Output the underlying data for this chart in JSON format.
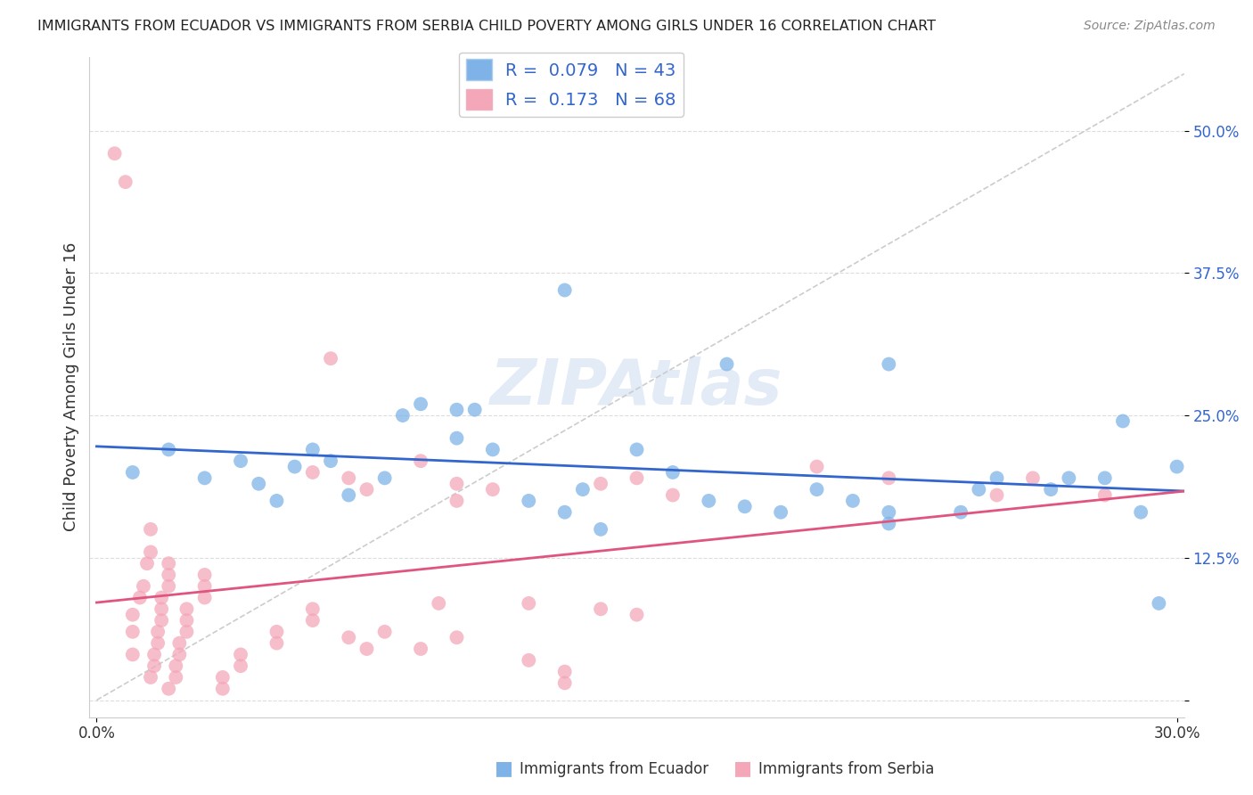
{
  "title": "IMMIGRANTS FROM ECUADOR VS IMMIGRANTS FROM SERBIA CHILD POVERTY AMONG GIRLS UNDER 16 CORRELATION CHART",
  "source": "Source: ZipAtlas.com",
  "ylabel": "Child Poverty Among Girls Under 16",
  "ecuador_color": "#7fb3e8",
  "serbia_color": "#f4a7b9",
  "ecuador_R": 0.079,
  "ecuador_N": 43,
  "serbia_R": 0.173,
  "serbia_N": 68,
  "ecuador_line_color": "#3366cc",
  "serbia_line_color": "#e05580",
  "ecuador_points": [
    [
      0.01,
      0.2
    ],
    [
      0.02,
      0.22
    ],
    [
      0.03,
      0.195
    ],
    [
      0.04,
      0.21
    ],
    [
      0.045,
      0.19
    ],
    [
      0.05,
      0.175
    ],
    [
      0.055,
      0.205
    ],
    [
      0.06,
      0.22
    ],
    [
      0.065,
      0.21
    ],
    [
      0.07,
      0.18
    ],
    [
      0.08,
      0.195
    ],
    [
      0.085,
      0.25
    ],
    [
      0.09,
      0.26
    ],
    [
      0.1,
      0.23
    ],
    [
      0.1,
      0.255
    ],
    [
      0.105,
      0.255
    ],
    [
      0.11,
      0.22
    ],
    [
      0.12,
      0.175
    ],
    [
      0.13,
      0.165
    ],
    [
      0.135,
      0.185
    ],
    [
      0.14,
      0.15
    ],
    [
      0.15,
      0.22
    ],
    [
      0.16,
      0.2
    ],
    [
      0.17,
      0.175
    ],
    [
      0.18,
      0.17
    ],
    [
      0.19,
      0.165
    ],
    [
      0.2,
      0.185
    ],
    [
      0.21,
      0.175
    ],
    [
      0.22,
      0.155
    ],
    [
      0.22,
      0.165
    ],
    [
      0.24,
      0.165
    ],
    [
      0.25,
      0.195
    ],
    [
      0.28,
      0.195
    ],
    [
      0.29,
      0.165
    ],
    [
      0.3,
      0.205
    ],
    [
      0.13,
      0.36
    ],
    [
      0.175,
      0.295
    ],
    [
      0.22,
      0.295
    ],
    [
      0.245,
      0.185
    ],
    [
      0.265,
      0.185
    ],
    [
      0.27,
      0.195
    ],
    [
      0.285,
      0.245
    ],
    [
      0.295,
      0.085
    ]
  ],
  "serbia_points": [
    [
      0.005,
      0.48
    ],
    [
      0.008,
      0.455
    ],
    [
      0.01,
      0.04
    ],
    [
      0.01,
      0.06
    ],
    [
      0.01,
      0.075
    ],
    [
      0.012,
      0.09
    ],
    [
      0.013,
      0.1
    ],
    [
      0.014,
      0.12
    ],
    [
      0.015,
      0.13
    ],
    [
      0.015,
      0.15
    ],
    [
      0.015,
      0.02
    ],
    [
      0.016,
      0.03
    ],
    [
      0.016,
      0.04
    ],
    [
      0.017,
      0.05
    ],
    [
      0.017,
      0.06
    ],
    [
      0.018,
      0.07
    ],
    [
      0.018,
      0.08
    ],
    [
      0.018,
      0.09
    ],
    [
      0.02,
      0.1
    ],
    [
      0.02,
      0.11
    ],
    [
      0.02,
      0.12
    ],
    [
      0.02,
      0.01
    ],
    [
      0.022,
      0.02
    ],
    [
      0.022,
      0.03
    ],
    [
      0.023,
      0.04
    ],
    [
      0.023,
      0.05
    ],
    [
      0.025,
      0.06
    ],
    [
      0.025,
      0.07
    ],
    [
      0.025,
      0.08
    ],
    [
      0.03,
      0.09
    ],
    [
      0.03,
      0.1
    ],
    [
      0.03,
      0.11
    ],
    [
      0.035,
      0.01
    ],
    [
      0.035,
      0.02
    ],
    [
      0.04,
      0.03
    ],
    [
      0.04,
      0.04
    ],
    [
      0.05,
      0.05
    ],
    [
      0.05,
      0.06
    ],
    [
      0.06,
      0.07
    ],
    [
      0.06,
      0.08
    ],
    [
      0.06,
      0.2
    ],
    [
      0.065,
      0.3
    ],
    [
      0.07,
      0.195
    ],
    [
      0.075,
      0.185
    ],
    [
      0.09,
      0.21
    ],
    [
      0.095,
      0.085
    ],
    [
      0.1,
      0.19
    ],
    [
      0.1,
      0.175
    ],
    [
      0.11,
      0.185
    ],
    [
      0.12,
      0.085
    ],
    [
      0.14,
      0.08
    ],
    [
      0.14,
      0.19
    ],
    [
      0.15,
      0.075
    ],
    [
      0.15,
      0.195
    ],
    [
      0.16,
      0.18
    ],
    [
      0.2,
      0.205
    ],
    [
      0.22,
      0.195
    ],
    [
      0.25,
      0.18
    ],
    [
      0.26,
      0.195
    ],
    [
      0.28,
      0.18
    ],
    [
      0.08,
      0.06
    ],
    [
      0.09,
      0.045
    ],
    [
      0.1,
      0.055
    ],
    [
      0.12,
      0.035
    ],
    [
      0.13,
      0.025
    ],
    [
      0.13,
      0.015
    ],
    [
      0.07,
      0.055
    ],
    [
      0.075,
      0.045
    ]
  ]
}
